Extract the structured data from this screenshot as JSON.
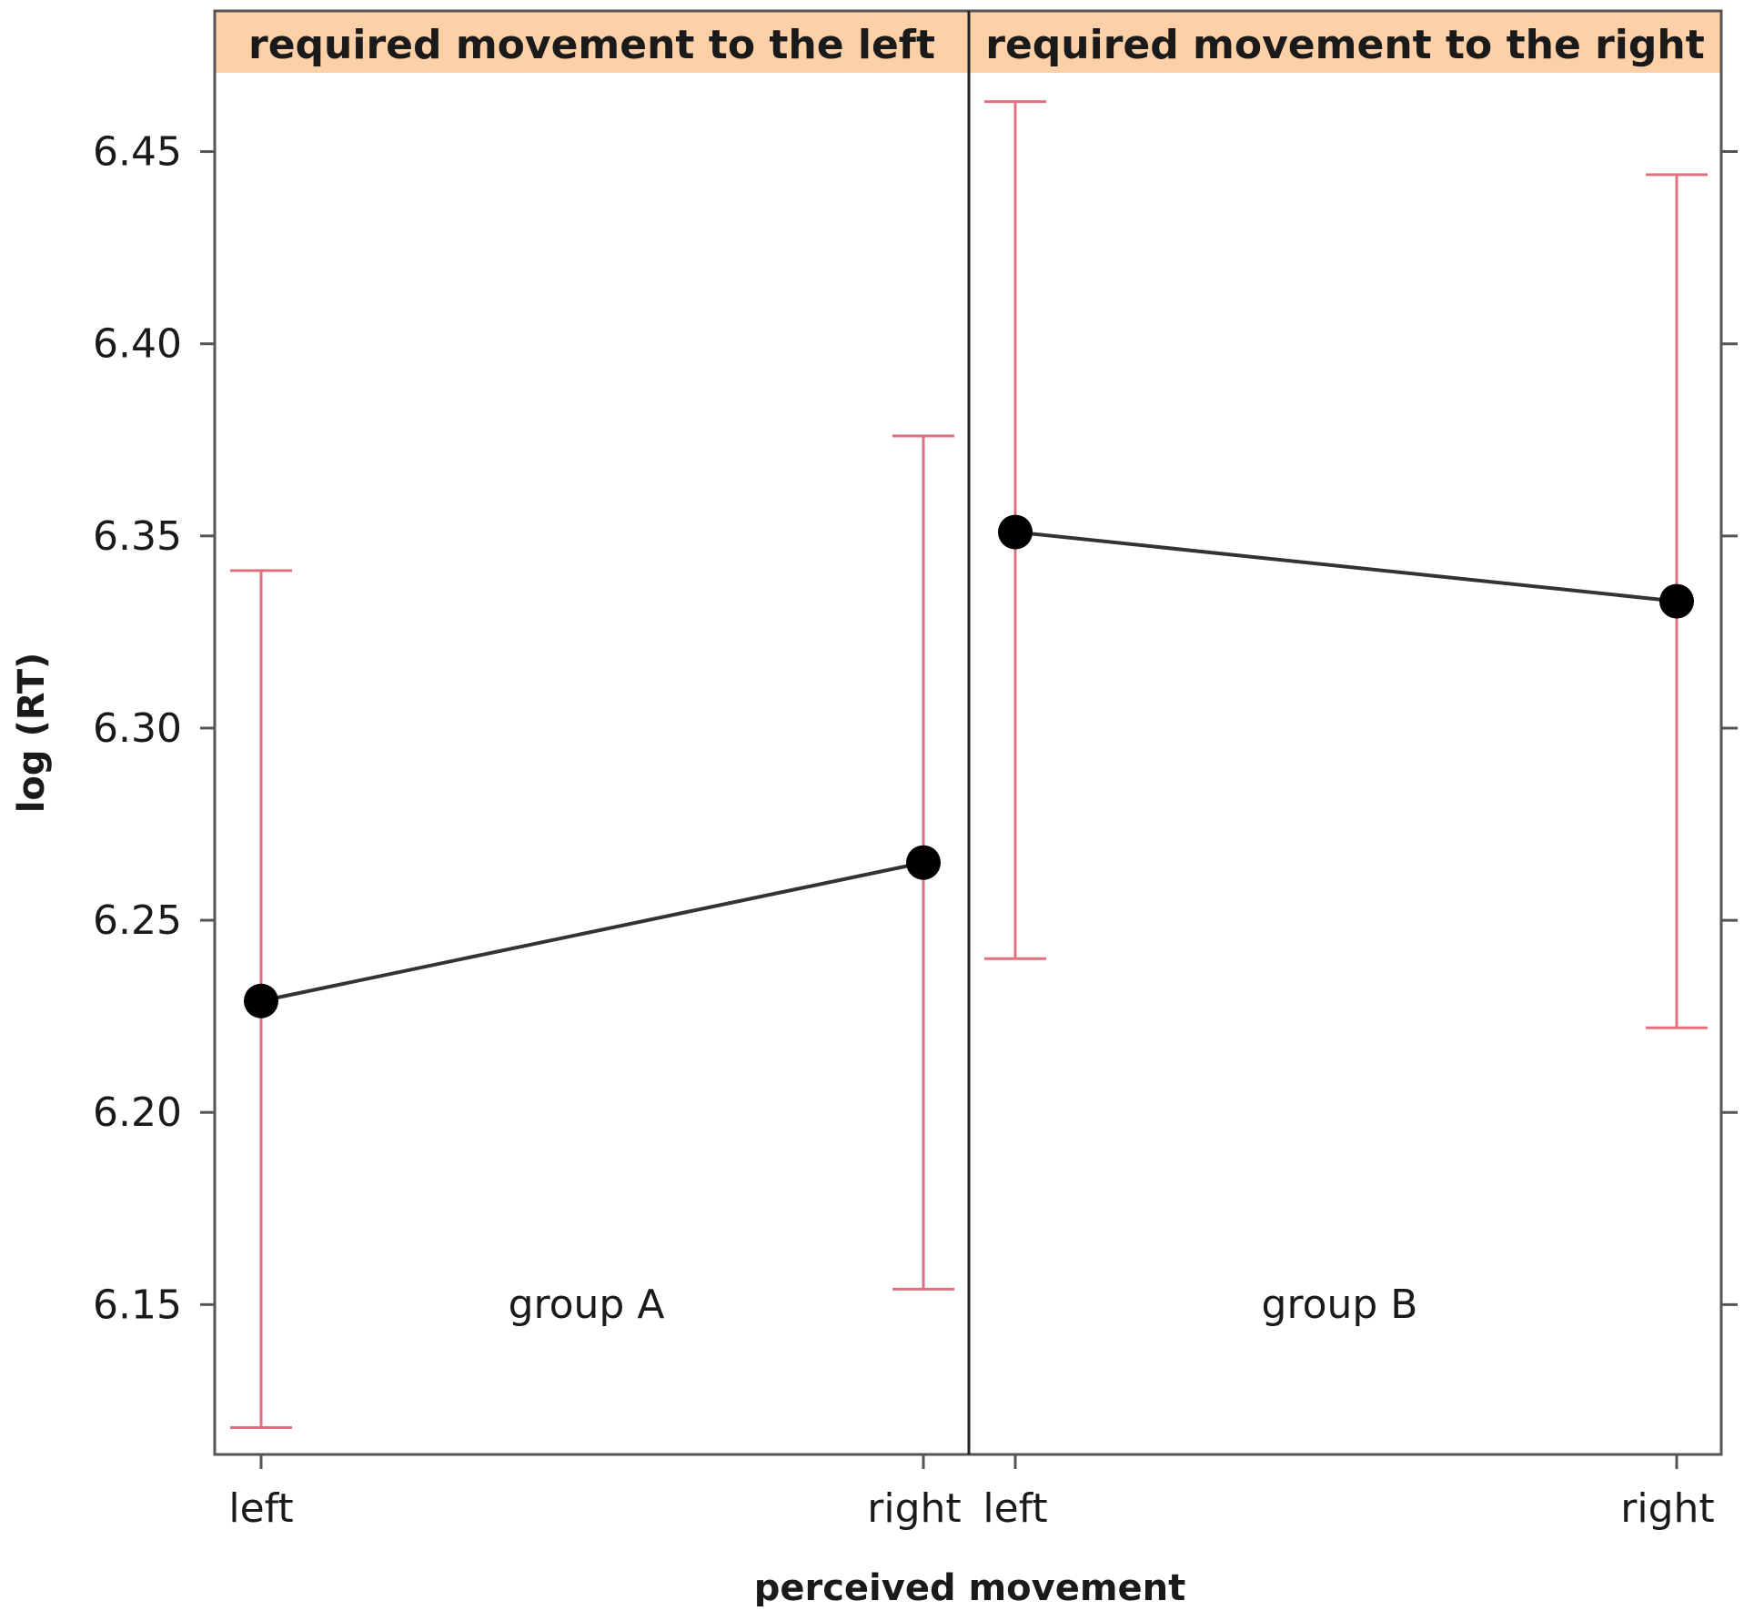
{
  "chart_data": {
    "type": "line",
    "panels": [
      {
        "strip_label": "required movement to the left",
        "group_label": "group A",
        "categories": [
          "left",
          "right"
        ],
        "values": [
          6.229,
          6.265
        ],
        "lower": [
          6.118,
          6.154
        ],
        "upper": [
          6.341,
          6.376
        ]
      },
      {
        "strip_label": "required movement to the right",
        "group_label": "group B",
        "categories": [
          "left",
          "right"
        ],
        "values": [
          6.351,
          6.333
        ],
        "lower": [
          6.24,
          6.222
        ],
        "upper": [
          6.463,
          6.444
        ]
      }
    ],
    "xlabel": "perceived movement",
    "ylabel": "log (RT)",
    "yticks": [
      "6.15",
      "6.20",
      "6.25",
      "6.30",
      "6.35",
      "6.40",
      "6.45"
    ],
    "ylim": [
      6.111,
      6.4705
    ],
    "grid": false,
    "colors": {
      "strip": "#fdd0a8",
      "errorbar": "#e0707f",
      "line": "#333333",
      "point": "#000000",
      "frame": "#555555"
    }
  }
}
